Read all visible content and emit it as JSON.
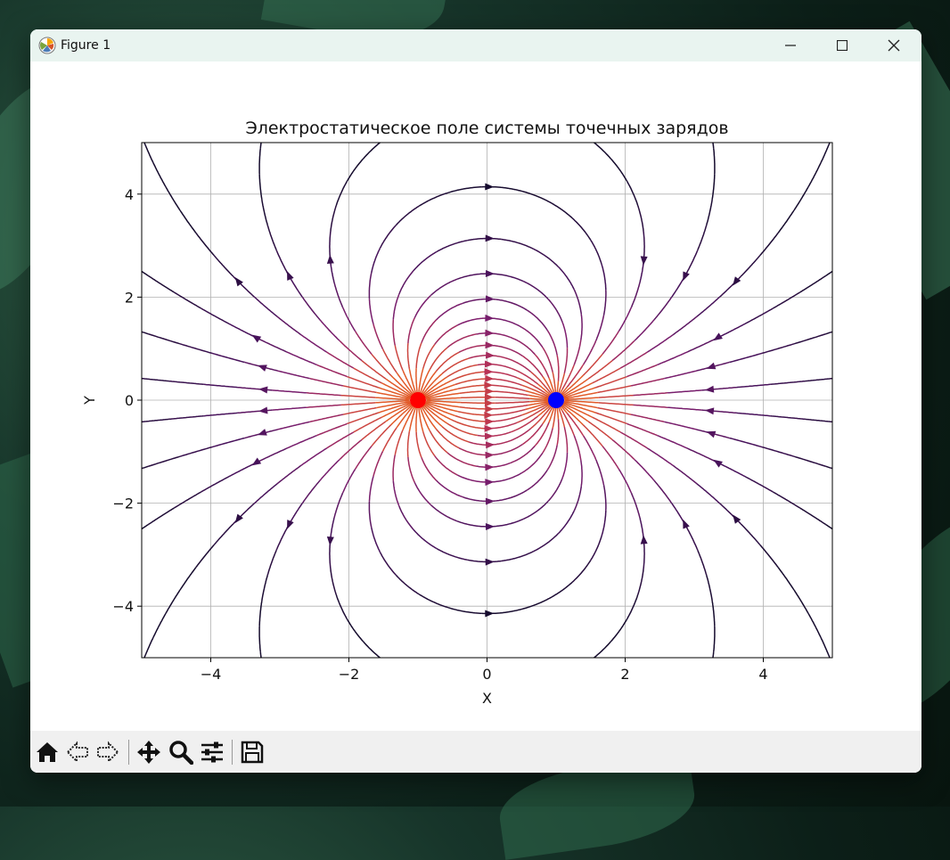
{
  "window": {
    "title": "Figure 1"
  },
  "toolbar": {
    "buttons": [
      "home-icon",
      "back-icon",
      "forward-icon",
      "pan-icon",
      "zoom-icon",
      "configure-icon",
      "save-icon"
    ]
  },
  "colors": {
    "positive_charge": "#ff0000",
    "negative_charge": "#0000ff",
    "line_far": "#150b2d",
    "line_near": "#c0304e"
  },
  "chart_data": {
    "type": "streamplot",
    "title": "Электростатическое поле системы точечных зарядов",
    "xlabel": "X",
    "ylabel": "Y",
    "xlim": [
      -5,
      5
    ],
    "ylim": [
      -5,
      5
    ],
    "xticks": [
      "−4",
      "−2",
      "0",
      "2",
      "4"
    ],
    "yticks": [
      "−4",
      "−2",
      "0",
      "2",
      "4"
    ],
    "grid": true,
    "charges": [
      {
        "x": -1,
        "y": 0,
        "color": "#ff0000"
      },
      {
        "x": 1,
        "y": 0,
        "color": "#0000ff"
      }
    ]
  }
}
